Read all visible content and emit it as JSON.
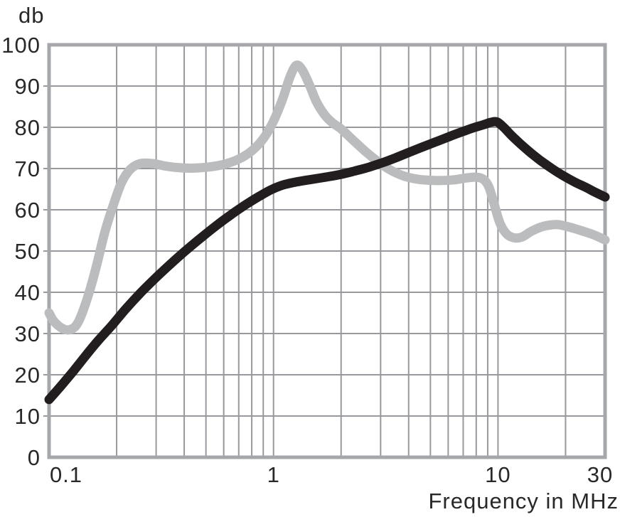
{
  "chart_data": {
    "type": "line",
    "title": "",
    "xlabel": "Frequency in MHz",
    "ylabel": "db",
    "x_scale": "log",
    "xlim": [
      0.1,
      30
    ],
    "ylim": [
      0,
      100
    ],
    "grid": true,
    "legend_position": "none",
    "x_ticks": [
      {
        "value": 0.1,
        "label": "0.1"
      },
      {
        "value": 1,
        "label": "1"
      },
      {
        "value": 10,
        "label": "10"
      },
      {
        "value": 30,
        "label": "30"
      }
    ],
    "y_ticks": [
      {
        "value": 0,
        "label": "0"
      },
      {
        "value": 10,
        "label": "10"
      },
      {
        "value": 20,
        "label": "20"
      },
      {
        "value": 30,
        "label": "30"
      },
      {
        "value": 40,
        "label": "40"
      },
      {
        "value": 50,
        "label": "50"
      },
      {
        "value": 60,
        "label": "60"
      },
      {
        "value": 70,
        "label": "70"
      },
      {
        "value": 80,
        "label": "80"
      },
      {
        "value": 90,
        "label": "90"
      },
      {
        "value": 100,
        "label": "100"
      }
    ],
    "x_gridlines": [
      0.2,
      0.3,
      0.4,
      0.5,
      0.6,
      0.7,
      0.8,
      0.9,
      1,
      2,
      3,
      4,
      5,
      6,
      7,
      8,
      9,
      10,
      20
    ],
    "y_gridlines": [
      10,
      20,
      30,
      40,
      50,
      60,
      70,
      80,
      90
    ],
    "colors": {
      "grid": "#97999c",
      "border": "#a5a7aa",
      "text": "#29272a",
      "background": "#ffffff"
    },
    "series": [
      {
        "name": "gray-response-curve",
        "color": "#babcbe",
        "stroke_width": 13,
        "points": [
          [
            0.1,
            35
          ],
          [
            0.105,
            33
          ],
          [
            0.115,
            31.2
          ],
          [
            0.125,
            31
          ],
          [
            0.135,
            32.8
          ],
          [
            0.148,
            38.5
          ],
          [
            0.162,
            46
          ],
          [
            0.177,
            54.5
          ],
          [
            0.193,
            61
          ],
          [
            0.21,
            66.5
          ],
          [
            0.23,
            69.8
          ],
          [
            0.255,
            71.2
          ],
          [
            0.29,
            71.2
          ],
          [
            0.33,
            70.6
          ],
          [
            0.38,
            70.2
          ],
          [
            0.44,
            70.1
          ],
          [
            0.52,
            70.4
          ],
          [
            0.6,
            71
          ],
          [
            0.7,
            72.3
          ],
          [
            0.8,
            74.3
          ],
          [
            0.9,
            77.2
          ],
          [
            1.0,
            81.5
          ],
          [
            1.1,
            87
          ],
          [
            1.18,
            92
          ],
          [
            1.26,
            95
          ],
          [
            1.34,
            94
          ],
          [
            1.44,
            90.5
          ],
          [
            1.55,
            86.3
          ],
          [
            1.68,
            83.2
          ],
          [
            1.82,
            81.2
          ],
          [
            2.0,
            79.6
          ],
          [
            2.25,
            77
          ],
          [
            2.55,
            74.3
          ],
          [
            2.9,
            71.8
          ],
          [
            3.3,
            69.7
          ],
          [
            3.8,
            68.2
          ],
          [
            4.4,
            67.4
          ],
          [
            5.2,
            67.1
          ],
          [
            6.2,
            67.2
          ],
          [
            7.2,
            67.7
          ],
          [
            8.0,
            67.9
          ],
          [
            8.6,
            67.4
          ],
          [
            9.1,
            65.6
          ],
          [
            9.6,
            61.5
          ],
          [
            10.2,
            56.8
          ],
          [
            10.9,
            54.2
          ],
          [
            11.8,
            53.2
          ],
          [
            12.8,
            53.4
          ],
          [
            14,
            54.7
          ],
          [
            15.5,
            55.8
          ],
          [
            17,
            56.3
          ],
          [
            18.5,
            56.4
          ],
          [
            20.5,
            55.9
          ],
          [
            23,
            55.1
          ],
          [
            26.5,
            54
          ],
          [
            30,
            52.7
          ]
        ]
      },
      {
        "name": "black-response-curve",
        "color": "#221e1f",
        "stroke_width": 13,
        "points": [
          [
            0.1,
            14
          ],
          [
            0.113,
            17.3
          ],
          [
            0.128,
            20.8
          ],
          [
            0.145,
            24.5
          ],
          [
            0.165,
            28.2
          ],
          [
            0.19,
            31.9
          ],
          [
            0.22,
            36
          ],
          [
            0.255,
            39.8
          ],
          [
            0.3,
            43.6
          ],
          [
            0.35,
            47
          ],
          [
            0.41,
            50.3
          ],
          [
            0.48,
            53.4
          ],
          [
            0.56,
            56.3
          ],
          [
            0.65,
            58.9
          ],
          [
            0.75,
            61.2
          ],
          [
            0.86,
            63.2
          ],
          [
            0.97,
            64.8
          ],
          [
            1.1,
            66
          ],
          [
            1.25,
            66.7
          ],
          [
            1.45,
            67.3
          ],
          [
            1.7,
            67.9
          ],
          [
            2.0,
            68.6
          ],
          [
            2.3,
            69.4
          ],
          [
            2.65,
            70.3
          ],
          [
            3.05,
            71.4
          ],
          [
            3.5,
            72.6
          ],
          [
            4.0,
            73.9
          ],
          [
            4.6,
            75.2
          ],
          [
            5.3,
            76.5
          ],
          [
            6.1,
            77.8
          ],
          [
            7.0,
            79
          ],
          [
            7.8,
            79.9
          ],
          [
            8.6,
            80.6
          ],
          [
            9.3,
            81.2
          ],
          [
            9.9,
            81.3
          ],
          [
            10.6,
            80
          ],
          [
            11.5,
            78
          ],
          [
            12.7,
            75.8
          ],
          [
            14,
            73.8
          ],
          [
            15.5,
            71.9
          ],
          [
            17.5,
            69.9
          ],
          [
            19.5,
            68.3
          ],
          [
            22,
            66.7
          ],
          [
            24.5,
            65.5
          ],
          [
            27,
            64.3
          ],
          [
            30,
            63.1
          ]
        ]
      }
    ]
  }
}
